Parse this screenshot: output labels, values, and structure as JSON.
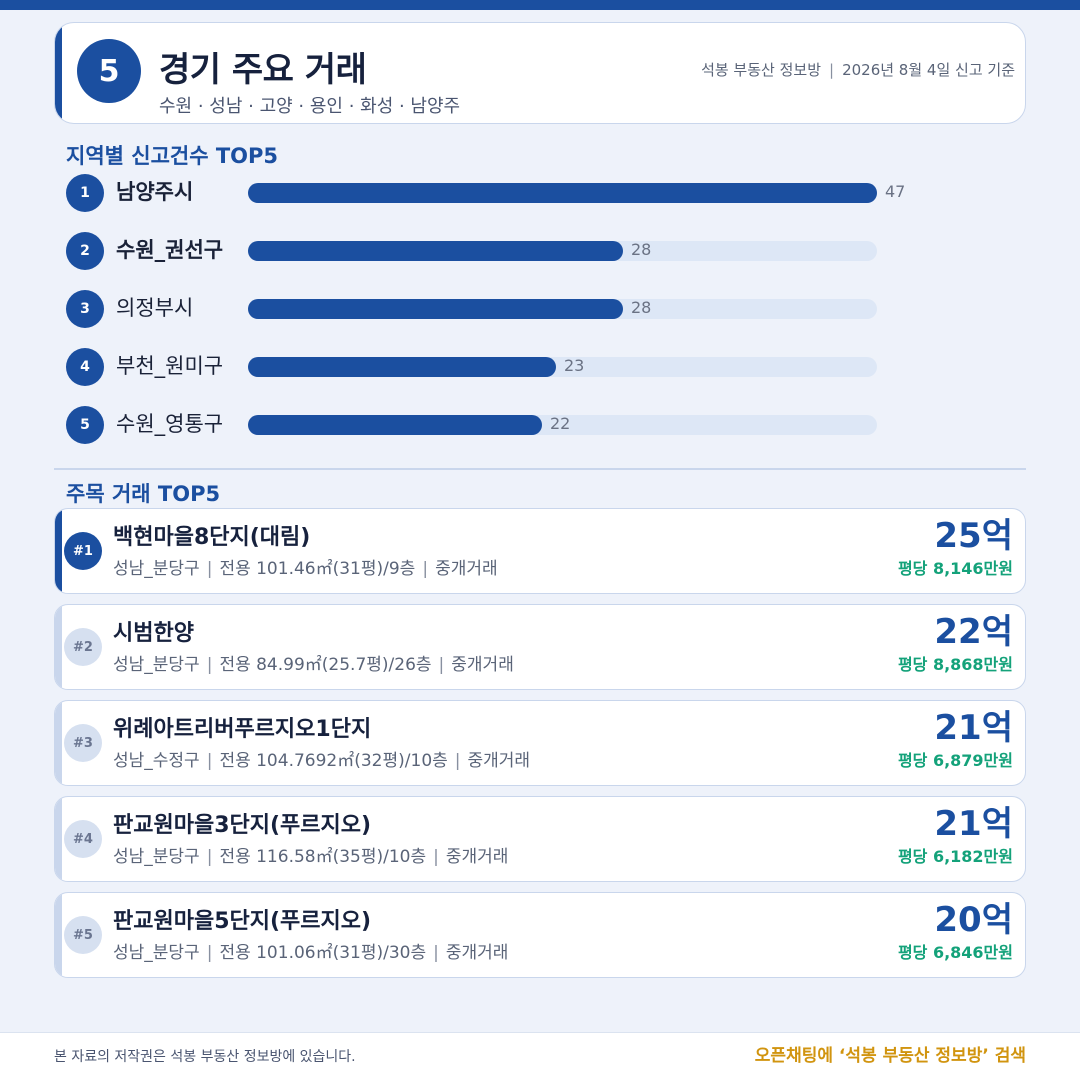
{
  "header": {
    "badge_number": "5",
    "title": "경기 주요 거래",
    "subtitle": "수원 · 성남 · 고양 · 용인 · 화성 · 남양주",
    "source": "석봉 부동산 정보방",
    "date_label": "2026년 8월 4일 신고 기준"
  },
  "section_regions": {
    "title": "지역별 신고건수 TOP5"
  },
  "chart_data": {
    "type": "bar",
    "orientation": "horizontal",
    "title": "지역별 신고건수 TOP5",
    "categories": [
      "남양주시",
      "수원_권선구",
      "의정부시",
      "부천_원미구",
      "수원_영통구"
    ],
    "values": [
      47,
      28,
      28,
      23,
      22
    ],
    "value_labels": [
      "47",
      "28",
      "28",
      "23",
      "22"
    ],
    "ranks": [
      "1",
      "2",
      "3",
      "4",
      "5"
    ],
    "xlim": [
      0,
      47
    ],
    "grid": false,
    "bar_color": "#1b4fa0",
    "track_color": "#dde7f6"
  },
  "section_deals": {
    "title": "주목 거래 TOP5"
  },
  "deals": [
    {
      "rank": "#1",
      "name": "백현마을8단지(대림)",
      "district": "성남_분당구",
      "spec": "전용 101.46㎡(31평)/9층",
      "type": "중개거래",
      "price": "25억",
      "per_pyeong": "평당 8,146만원"
    },
    {
      "rank": "#2",
      "name": "시범한양",
      "district": "성남_분당구",
      "spec": "전용 84.99㎡(25.7평)/26층",
      "type": "중개거래",
      "price": "22억",
      "per_pyeong": "평당 8,868만원"
    },
    {
      "rank": "#3",
      "name": "위례아트리버푸르지오1단지",
      "district": "성남_수정구",
      "spec": "전용 104.7692㎡(32평)/10층",
      "type": "중개거래",
      "price": "21억",
      "per_pyeong": "평당 6,879만원"
    },
    {
      "rank": "#4",
      "name": "판교원마을3단지(푸르지오)",
      "district": "성남_분당구",
      "spec": "전용 116.58㎡(35평)/10층",
      "type": "중개거래",
      "price": "21억",
      "per_pyeong": "평당 6,182만원"
    },
    {
      "rank": "#5",
      "name": "판교원마을5단지(푸르지오)",
      "district": "성남_분당구",
      "spec": "전용 101.06㎡(31평)/30층",
      "type": "중개거래",
      "price": "20억",
      "per_pyeong": "평당 6,846만원"
    }
  ],
  "footer": {
    "copyright": "본 자료의 저작권은 석봉 부동산 정보방에 있습니다.",
    "cta": "오픈채팅에 ‘석봉 부동산 정보방’ 검색"
  },
  "colors": {
    "primary": "#1b4fa0",
    "accent_green": "#14a27a",
    "cta_gold": "#d1940f",
    "background": "#eef2fa"
  }
}
